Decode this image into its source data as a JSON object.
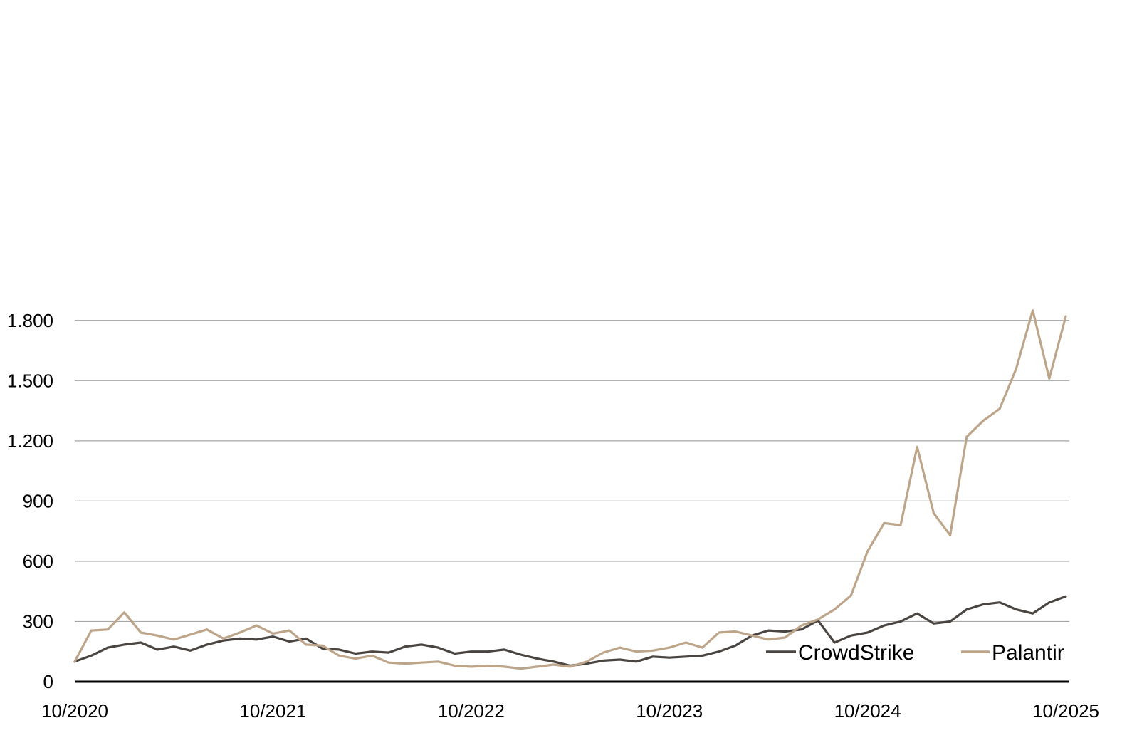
{
  "chart_data": {
    "type": "line",
    "title": "",
    "xlabel": "",
    "ylabel": "",
    "x_range": [
      "2020-10",
      "2025-10"
    ],
    "ylim": [
      0,
      1950
    ],
    "grid": "horizontal",
    "legend_placement": "bottom-right",
    "x_ticks": [
      "10/2020",
      "10/2021",
      "10/2022",
      "10/2023",
      "10/2024",
      "10/2025"
    ],
    "y_ticks": [
      {
        "value": 0,
        "label": "0"
      },
      {
        "value": 300,
        "label": "300"
      },
      {
        "value": 600,
        "label": "600"
      },
      {
        "value": 900,
        "label": "900"
      },
      {
        "value": 1200,
        "label": "1.200"
      },
      {
        "value": 1500,
        "label": "1.500"
      },
      {
        "value": 1800,
        "label": "1.800"
      }
    ],
    "series": [
      {
        "name": "CrowdStrike",
        "color": "#4a4540",
        "points": [
          [
            "2020-10",
            100
          ],
          [
            "2020-11",
            130
          ],
          [
            "2020-12",
            170
          ],
          [
            "2021-01",
            185
          ],
          [
            "2021-02",
            195
          ],
          [
            "2021-03",
            160
          ],
          [
            "2021-04",
            175
          ],
          [
            "2021-05",
            155
          ],
          [
            "2021-06",
            185
          ],
          [
            "2021-07",
            205
          ],
          [
            "2021-08",
            215
          ],
          [
            "2021-09",
            210
          ],
          [
            "2021-10",
            225
          ],
          [
            "2021-11",
            200
          ],
          [
            "2021-12",
            215
          ],
          [
            "2022-01",
            165
          ],
          [
            "2022-02",
            160
          ],
          [
            "2022-03",
            140
          ],
          [
            "2022-04",
            150
          ],
          [
            "2022-05",
            145
          ],
          [
            "2022-06",
            175
          ],
          [
            "2022-07",
            185
          ],
          [
            "2022-08",
            170
          ],
          [
            "2022-09",
            140
          ],
          [
            "2022-10",
            150
          ],
          [
            "2022-11",
            150
          ],
          [
            "2022-12",
            160
          ],
          [
            "2023-01",
            135
          ],
          [
            "2023-02",
            115
          ],
          [
            "2023-03",
            100
          ],
          [
            "2023-04",
            80
          ],
          [
            "2023-05",
            90
          ],
          [
            "2023-06",
            105
          ],
          [
            "2023-07",
            110
          ],
          [
            "2023-08",
            100
          ],
          [
            "2023-09",
            125
          ],
          [
            "2023-10",
            120
          ],
          [
            "2023-11",
            125
          ],
          [
            "2023-12",
            130
          ],
          [
            "2024-01",
            150
          ],
          [
            "2024-02",
            180
          ],
          [
            "2024-03",
            230
          ],
          [
            "2024-04",
            255
          ],
          [
            "2024-05",
            250
          ],
          [
            "2024-06",
            260
          ],
          [
            "2024-07",
            305
          ],
          [
            "2024-08",
            195
          ],
          [
            "2024-09",
            230
          ],
          [
            "2024-10",
            245
          ],
          [
            "2024-11",
            280
          ],
          [
            "2024-12",
            300
          ],
          [
            "2025-01",
            340
          ],
          [
            "2025-02",
            290
          ],
          [
            "2025-03",
            300
          ],
          [
            "2025-04",
            360
          ],
          [
            "2025-05",
            385
          ],
          [
            "2025-06",
            395
          ],
          [
            "2025-07",
            360
          ],
          [
            "2025-08",
            340
          ],
          [
            "2025-09",
            395
          ],
          [
            "2025-10",
            425
          ]
        ]
      },
      {
        "name": "Palantir",
        "color": "#bda58a",
        "points": [
          [
            "2020-10",
            100
          ],
          [
            "2020-11",
            255
          ],
          [
            "2020-12",
            260
          ],
          [
            "2021-01",
            345
          ],
          [
            "2021-02",
            245
          ],
          [
            "2021-03",
            230
          ],
          [
            "2021-04",
            210
          ],
          [
            "2021-05",
            235
          ],
          [
            "2021-06",
            260
          ],
          [
            "2021-07",
            215
          ],
          [
            "2021-08",
            245
          ],
          [
            "2021-09",
            280
          ],
          [
            "2021-10",
            240
          ],
          [
            "2021-11",
            255
          ],
          [
            "2021-12",
            185
          ],
          [
            "2022-01",
            180
          ],
          [
            "2022-02",
            130
          ],
          [
            "2022-03",
            115
          ],
          [
            "2022-04",
            130
          ],
          [
            "2022-05",
            95
          ],
          [
            "2022-06",
            90
          ],
          [
            "2022-07",
            95
          ],
          [
            "2022-08",
            100
          ],
          [
            "2022-09",
            80
          ],
          [
            "2022-10",
            75
          ],
          [
            "2022-11",
            80
          ],
          [
            "2022-12",
            75
          ],
          [
            "2023-01",
            65
          ],
          [
            "2023-02",
            75
          ],
          [
            "2023-03",
            85
          ],
          [
            "2023-04",
            75
          ],
          [
            "2023-05",
            100
          ],
          [
            "2023-06",
            145
          ],
          [
            "2023-07",
            170
          ],
          [
            "2023-08",
            150
          ],
          [
            "2023-09",
            155
          ],
          [
            "2023-10",
            170
          ],
          [
            "2023-11",
            195
          ],
          [
            "2023-12",
            170
          ],
          [
            "2024-01",
            245
          ],
          [
            "2024-02",
            250
          ],
          [
            "2024-03",
            230
          ],
          [
            "2024-04",
            210
          ],
          [
            "2024-05",
            220
          ],
          [
            "2024-06",
            280
          ],
          [
            "2024-07",
            310
          ],
          [
            "2024-08",
            360
          ],
          [
            "2024-09",
            430
          ],
          [
            "2024-10",
            650
          ],
          [
            "2024-11",
            790
          ],
          [
            "2024-12",
            780
          ],
          [
            "2025-01",
            1170
          ],
          [
            "2025-02",
            840
          ],
          [
            "2025-03",
            730
          ],
          [
            "2025-04",
            1220
          ],
          [
            "2025-05",
            1300
          ],
          [
            "2025-06",
            1360
          ],
          [
            "2025-07",
            1560
          ],
          [
            "2025-08",
            1850
          ],
          [
            "2025-09",
            1510
          ],
          [
            "2025-10",
            1820
          ]
        ]
      }
    ]
  }
}
